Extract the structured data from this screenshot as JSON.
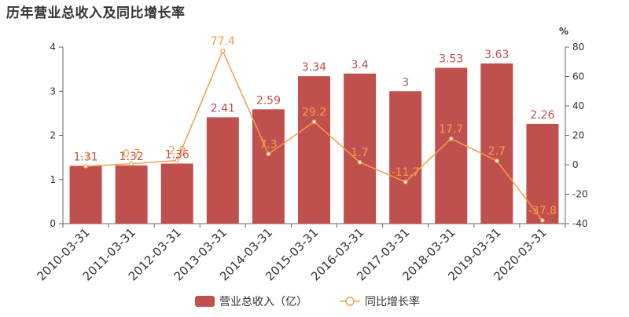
{
  "chart_data": {
    "type": "bar",
    "title": "历年营业总收入及同比增长率",
    "categories": [
      "2010-03-31",
      "2011-03-31",
      "2012-03-31",
      "2013-03-31",
      "2014-03-31",
      "2015-03-31",
      "2016-03-31",
      "2017-03-31",
      "2018-03-31",
      "2019-03-31",
      "2020-03-31"
    ],
    "series": [
      {
        "name": "营业总收入（亿）",
        "type": "bar",
        "axis": "left",
        "color": "#c0504d",
        "values": [
          1.31,
          1.32,
          1.36,
          2.41,
          2.59,
          3.34,
          3.4,
          3,
          3.53,
          3.63,
          2.26
        ],
        "labels": [
          "1.31",
          "1.32",
          "1.36",
          "2.41",
          "2.59",
          "3.34",
          "3.4",
          "3",
          "3.53",
          "3.63",
          "2.26"
        ]
      },
      {
        "name": "同比增长率",
        "type": "line",
        "axis": "right",
        "color": "#f59d4b",
        "values": [
          -1,
          0.7,
          2.9,
          77.4,
          7.3,
          29.2,
          1.7,
          -11.7,
          17.7,
          2.7,
          -37.8
        ],
        "labels": [
          "-1",
          "0.7",
          "2.9",
          "77.4",
          "7.3",
          "29.2",
          "1.7",
          "-11.7",
          "17.7",
          "2.7",
          "-37.8"
        ]
      }
    ],
    "y_left": {
      "min": 0,
      "max": 4,
      "ticks": [
        "0",
        "1",
        "2",
        "3",
        "4"
      ]
    },
    "y_right": {
      "min": -40,
      "max": 80,
      "ticks": [
        "-40",
        "-20",
        "0",
        "20",
        "40",
        "60",
        "80"
      ],
      "unit": "%"
    },
    "legend_position": "bottom-center",
    "grid": false
  }
}
